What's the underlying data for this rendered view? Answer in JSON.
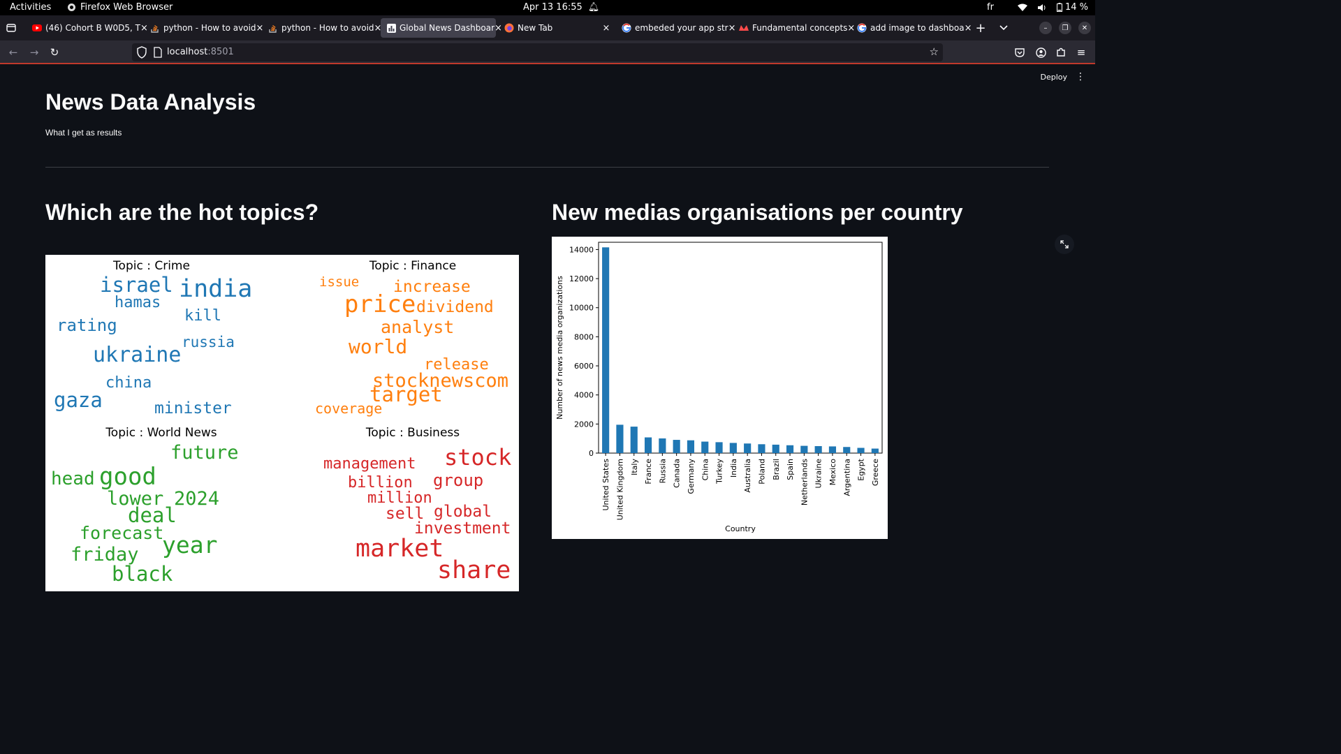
{
  "system_bar": {
    "activities": "Activities",
    "app_name": "Firefox Web Browser",
    "clock": "Apr 13  16:55",
    "keyboard_layout": "fr",
    "battery": "14 %"
  },
  "tabs": [
    {
      "label": "(46) Cohort B W0D5, T",
      "icon": "youtube-icon",
      "active": false
    },
    {
      "label": "python - How to avoid",
      "icon": "stackoverflow-icon",
      "active": false
    },
    {
      "label": "python - How to avoid",
      "icon": "stackoverflow-icon",
      "active": false
    },
    {
      "label": "Global News Dashboar",
      "icon": "dashboard-icon",
      "active": true
    },
    {
      "label": "New Tab",
      "icon": "firefox-icon",
      "active": false
    },
    {
      "label": "embeded your app str",
      "icon": "google-icon",
      "active": false
    },
    {
      "label": "Fundamental concepts",
      "icon": "streamlit-icon",
      "active": false
    },
    {
      "label": "add image to dashboa",
      "icon": "google-icon",
      "active": false
    }
  ],
  "navbar": {
    "url_host": "localhost",
    "url_port": ":8501"
  },
  "app": {
    "deploy_label": "Deploy",
    "title": "News Data Analysis",
    "caption": "What I get as results",
    "left_header": "Which are the hot topics?",
    "right_header": "New medias organisations per country"
  },
  "wordcloud": {
    "topics": [
      {
        "title": "Topic : Crime",
        "color": "#1f77b4",
        "words": [
          "israel",
          "india",
          "hamas",
          "kill",
          "rating",
          "russia",
          "ukraine",
          "china",
          "gaza",
          "minister"
        ]
      },
      {
        "title": "Topic : Finance",
        "color": "#ff7f0e",
        "words": [
          "issue",
          "increase",
          "price",
          "dividend",
          "analyst",
          "world",
          "release",
          "stocknewscom",
          "target",
          "coverage"
        ]
      },
      {
        "title": "Topic : World News",
        "color": "#2ca02c",
        "words": [
          "future",
          "head",
          "good",
          "lower",
          "2024",
          "deal",
          "forecast",
          "year",
          "friday",
          "black"
        ]
      },
      {
        "title": "Topic : Business",
        "color": "#d62728",
        "words": [
          "management",
          "stock",
          "billion",
          "group",
          "million",
          "sell",
          "global",
          "investment",
          "market",
          "share"
        ]
      }
    ]
  },
  "chart_data": {
    "type": "bar",
    "title": "",
    "xlabel": "Country",
    "ylabel": "Number of news media organizations",
    "ylim": [
      0,
      14500
    ],
    "yticks": [
      "0",
      "2000",
      "4000",
      "6000",
      "8000",
      "10000",
      "12000",
      "14000"
    ],
    "bar_color": "#1f77b4",
    "grid": false,
    "categories": [
      "United States",
      "United Kingdom",
      "Italy",
      "France",
      "Russia",
      "Canada",
      "Germany",
      "China",
      "Turkey",
      "India",
      "Australia",
      "Poland",
      "Brazil",
      "Spain",
      "Netherlands",
      "Ukraine",
      "Mexico",
      "Argentina",
      "Egypt",
      "Greece"
    ],
    "values": [
      14150,
      1950,
      1820,
      1080,
      1010,
      910,
      880,
      790,
      750,
      700,
      660,
      610,
      580,
      540,
      500,
      480,
      460,
      420,
      360,
      310
    ]
  }
}
